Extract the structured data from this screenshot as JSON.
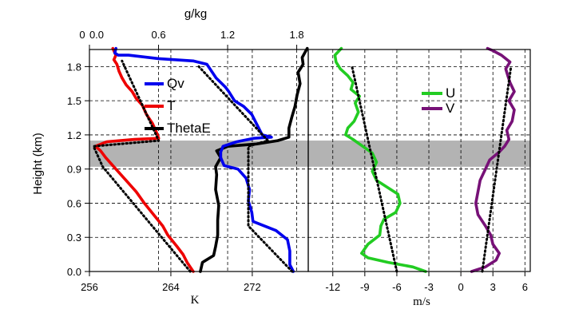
{
  "chart_data": [
    {
      "type": "line",
      "panel": "left",
      "ylabel": "Height (km)",
      "ylim": [
        0.0,
        1.95
      ],
      "yticks": [
        "0.0",
        "0.3",
        "0.6",
        "0.9",
        "1.2",
        "1.5",
        "1.8"
      ],
      "ytick_values": [
        0.0,
        0.3,
        0.6,
        0.9,
        1.2,
        1.5,
        1.8
      ],
      "xlabel_bottom": "K",
      "xlim_bottom": [
        256,
        277.5
      ],
      "xticks_bottom": [
        "256",
        "264",
        "272"
      ],
      "xtick_values_bottom": [
        256,
        264,
        272
      ],
      "xlabel_top": "g/kg",
      "xlim_top": [
        0.0,
        1.9
      ],
      "xticks_top": [
        "0.0",
        "0.6",
        "1.2",
        "1.8"
      ],
      "xtick_values_top": [
        0.0,
        0.6,
        1.2,
        1.8
      ],
      "top_extra_tick_label": "0",
      "grid": true,
      "shaded_band": [
        0.92,
        1.15
      ],
      "legend": [
        "Qv",
        "T",
        "ThetaE"
      ],
      "series": [
        {
          "name": "Qv",
          "axis": "top",
          "color": "#0000ee",
          "points": [
            [
              1.77,
              0.0
            ],
            [
              1.74,
              0.06
            ],
            [
              1.74,
              0.18
            ],
            [
              1.72,
              0.28
            ],
            [
              1.62,
              0.36
            ],
            [
              1.42,
              0.44
            ],
            [
              1.41,
              0.52
            ],
            [
              1.38,
              0.62
            ],
            [
              1.39,
              0.72
            ],
            [
              1.36,
              0.82
            ],
            [
              1.29,
              0.9
            ],
            [
              1.17,
              0.93
            ],
            [
              1.14,
              1.0
            ],
            [
              1.14,
              1.05
            ],
            [
              1.16,
              1.1
            ],
            [
              1.28,
              1.14
            ],
            [
              1.43,
              1.17
            ],
            [
              1.58,
              1.18
            ],
            [
              1.5,
              1.2
            ],
            [
              1.45,
              1.3
            ],
            [
              1.41,
              1.38
            ],
            [
              1.34,
              1.45
            ],
            [
              1.26,
              1.5
            ],
            [
              1.21,
              1.58
            ],
            [
              1.18,
              1.62
            ],
            [
              1.1,
              1.7
            ],
            [
              1.06,
              1.76
            ],
            [
              1.02,
              1.82
            ],
            [
              0.9,
              1.85
            ],
            [
              0.6,
              1.87
            ],
            [
              0.34,
              1.9
            ],
            [
              0.25,
              1.9
            ],
            [
              0.22,
              1.92
            ],
            [
              0.23,
              1.96
            ]
          ]
        },
        {
          "name": "T",
          "axis": "bottom",
          "color": "#ee0000",
          "points": [
            [
              266.2,
              0.0
            ],
            [
              265.6,
              0.08
            ],
            [
              265.2,
              0.15
            ],
            [
              264.6,
              0.22
            ],
            [
              263.7,
              0.32
            ],
            [
              263.2,
              0.4
            ],
            [
              262.3,
              0.5
            ],
            [
              261.4,
              0.6
            ],
            [
              260.6,
              0.7
            ],
            [
              259.6,
              0.8
            ],
            [
              258.6,
              0.9
            ],
            [
              257.6,
              1.0
            ],
            [
              257.1,
              1.06
            ],
            [
              256.6,
              1.1
            ],
            [
              257.7,
              1.14
            ],
            [
              260.4,
              1.16
            ],
            [
              262.8,
              1.17
            ],
            [
              262.6,
              1.22
            ],
            [
              262.2,
              1.3
            ],
            [
              261.6,
              1.38
            ],
            [
              261.2,
              1.46
            ],
            [
              260.6,
              1.52
            ],
            [
              260.2,
              1.58
            ],
            [
              259.6,
              1.64
            ],
            [
              259.2,
              1.7
            ],
            [
              258.9,
              1.76
            ],
            [
              258.7,
              1.82
            ],
            [
              258.4,
              1.86
            ],
            [
              258.6,
              1.9
            ],
            [
              258.3,
              1.96
            ]
          ]
        },
        {
          "name": "ThetaE",
          "axis": "bottom",
          "color": "#000000",
          "points": [
            [
              266.9,
              0.0
            ],
            [
              267.1,
              0.08
            ],
            [
              268.2,
              0.14
            ],
            [
              268.4,
              0.22
            ],
            [
              268.6,
              0.32
            ],
            [
              268.6,
              0.45
            ],
            [
              268.7,
              0.58
            ],
            [
              268.4,
              0.72
            ],
            [
              268.5,
              0.85
            ],
            [
              268.4,
              0.92
            ],
            [
              268.9,
              1.0
            ],
            [
              268.5,
              1.06
            ],
            [
              269.6,
              1.1
            ],
            [
              272.4,
              1.12
            ],
            [
              274.5,
              1.15
            ],
            [
              275.6,
              1.18
            ],
            [
              275.6,
              1.26
            ],
            [
              275.9,
              1.36
            ],
            [
              276.2,
              1.45
            ],
            [
              276.4,
              1.55
            ],
            [
              276.7,
              1.65
            ],
            [
              276.5,
              1.75
            ],
            [
              277.0,
              1.82
            ],
            [
              276.9,
              1.88
            ],
            [
              277.4,
              1.96
            ]
          ]
        },
        {
          "name": "",
          "axis": "top",
          "style": "dotted",
          "color": "#000000",
          "points": [
            [
              1.76,
              0.0
            ],
            [
              1.38,
              0.4
            ],
            [
              1.38,
              0.9
            ],
            [
              1.38,
              1.1
            ],
            [
              1.55,
              1.15
            ],
            [
              0.95,
              1.8
            ]
          ]
        },
        {
          "name": "",
          "axis": "bottom",
          "style": "dotted",
          "color": "#000000",
          "points": [
            [
              265.9,
              0.0
            ],
            [
              257.3,
              0.92
            ],
            [
              256.4,
              1.1
            ],
            [
              262.8,
              1.15
            ],
            [
              259.2,
              1.85
            ]
          ]
        }
      ]
    },
    {
      "type": "line",
      "panel": "right",
      "xlabel": "m/s",
      "xlim": [
        -14.3,
        6.5
      ],
      "xticks": [
        "-12",
        "-9",
        "-6",
        "-3",
        "0",
        "3",
        "6"
      ],
      "xtick_values": [
        -12,
        -9,
        -6,
        -3,
        0,
        3,
        6
      ],
      "ylim": [
        0.0,
        1.95
      ],
      "grid": true,
      "shaded_band": [
        0.92,
        1.15
      ],
      "legend": [
        "U",
        "V"
      ],
      "series": [
        {
          "name": "U",
          "color": "#22cc22",
          "points": [
            [
              -3.3,
              0.0
            ],
            [
              -4.5,
              0.04
            ],
            [
              -6.8,
              0.08
            ],
            [
              -8.7,
              0.12
            ],
            [
              -9.3,
              0.16
            ],
            [
              -8.7,
              0.24
            ],
            [
              -7.6,
              0.32
            ],
            [
              -7.5,
              0.4
            ],
            [
              -7.2,
              0.46
            ],
            [
              -6.1,
              0.52
            ],
            [
              -5.7,
              0.6
            ],
            [
              -5.9,
              0.68
            ],
            [
              -6.9,
              0.74
            ],
            [
              -7.9,
              0.8
            ],
            [
              -8.3,
              0.88
            ],
            [
              -7.9,
              0.96
            ],
            [
              -8.3,
              1.04
            ],
            [
              -9.2,
              1.1
            ],
            [
              -10.1,
              1.16
            ],
            [
              -10.8,
              1.2
            ],
            [
              -10.6,
              1.26
            ],
            [
              -10.0,
              1.32
            ],
            [
              -9.6,
              1.4
            ],
            [
              -9.9,
              1.48
            ],
            [
              -9.5,
              1.54
            ],
            [
              -10.3,
              1.6
            ],
            [
              -10.1,
              1.66
            ],
            [
              -10.6,
              1.72
            ],
            [
              -11.3,
              1.78
            ],
            [
              -11.7,
              1.84
            ],
            [
              -11.8,
              1.9
            ],
            [
              -11.2,
              1.96
            ]
          ]
        },
        {
          "name": "V",
          "color": "#771177",
          "points": [
            [
              1.0,
              0.0
            ],
            [
              2.3,
              0.04
            ],
            [
              3.3,
              0.1
            ],
            [
              3.6,
              0.16
            ],
            [
              3.0,
              0.24
            ],
            [
              2.8,
              0.32
            ],
            [
              2.3,
              0.4
            ],
            [
              1.6,
              0.5
            ],
            [
              1.4,
              0.6
            ],
            [
              1.6,
              0.7
            ],
            [
              1.8,
              0.8
            ],
            [
              2.3,
              0.9
            ],
            [
              2.7,
              0.98
            ],
            [
              3.6,
              1.05
            ],
            [
              4.1,
              1.1
            ],
            [
              4.5,
              1.16
            ],
            [
              4.3,
              1.24
            ],
            [
              4.8,
              1.32
            ],
            [
              5.0,
              1.42
            ],
            [
              4.5,
              1.5
            ],
            [
              5.0,
              1.58
            ],
            [
              4.6,
              1.66
            ],
            [
              4.4,
              1.72
            ],
            [
              4.2,
              1.78
            ],
            [
              4.6,
              1.84
            ],
            [
              3.8,
              1.9
            ],
            [
              3.0,
              1.94
            ],
            [
              2.5,
              1.96
            ]
          ]
        },
        {
          "name": "",
          "style": "dotted",
          "color": "#000000",
          "points": [
            [
              -6.0,
              0.0
            ],
            [
              -10.2,
              1.8
            ]
          ]
        },
        {
          "name": "",
          "style": "dotted",
          "color": "#000000",
          "points": [
            [
              2.0,
              0.0
            ],
            [
              4.7,
              1.8
            ]
          ]
        }
      ]
    }
  ]
}
